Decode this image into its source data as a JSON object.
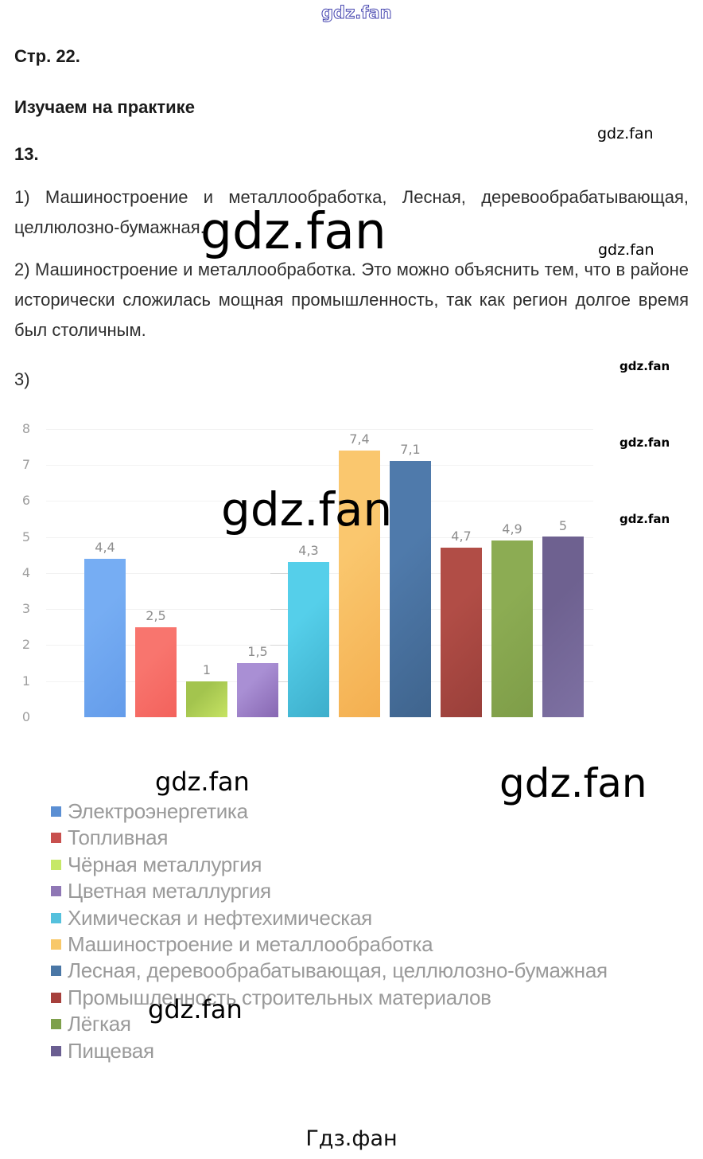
{
  "page": {
    "header": "Стр. 22.",
    "subheader": "Изучаем на практике",
    "task_number": "13.",
    "answers": {
      "p1_lines": [
        "1) Машиностроение и металлообработка, Лесная, деревообрабатывающая,",
        "целлюлозно-бумажная."
      ],
      "p2_lines": [
        "2) Машиностроение и металлообработка. Это можно объяснить тем, что в районе",
        "исторически сложилась мощная промышленность, так как регион долгое время",
        "был столичным."
      ],
      "p3_label": "3)"
    },
    "footer": "Гдз.фан"
  },
  "watermarks": [
    "gdz.fan",
    "gdz.fan",
    "gdz.fan",
    "gdz.fan",
    "gdz.fan",
    "gdz.fan",
    "gdz.fan",
    "gdz.fan",
    "gdz.fan",
    "gdz.fan",
    "gdz.fan"
  ],
  "chart_data": {
    "type": "bar",
    "title": "",
    "xlabel": "",
    "ylabel": "",
    "ylim": [
      0,
      8
    ],
    "yticks": [
      "0",
      "1",
      "2",
      "3",
      "4",
      "5",
      "6",
      "7",
      "8"
    ],
    "grid": "faint-horizontal",
    "legend_position": "bottom-left",
    "categories": [
      "Электроэнергетика",
      "Топливная",
      "Чёрная металлургия",
      "Цветная металлургия",
      "Химическая и нефтехимическая",
      "Машиностроение и металлообработка",
      "Лесная, деревообрабатывающая, целлюлозно-бумажная",
      "Промышленность строительных материалов",
      "Лёгкая",
      "Пищевая"
    ],
    "values": [
      4.4,
      2.5,
      1,
      1.5,
      4.3,
      7.4,
      7.1,
      4.7,
      4.9,
      5
    ],
    "value_labels": [
      "4,4",
      "2,5",
      "1",
      "1,5",
      "4,3",
      "7,4",
      "7,1",
      "4,7",
      "4,9",
      "5"
    ],
    "bar_colors": [
      [
        "#76ADF3",
        "#649CEA"
      ],
      [
        "#F8756E",
        "#F3625C"
      ],
      [
        "#A3C44E",
        "#C6E363"
      ],
      [
        "#A98FD4",
        "#8767B2"
      ],
      [
        "#55CFEA",
        "#3DAECB"
      ],
      [
        "#FAC76E",
        "#F4AF50"
      ],
      [
        "#4F7AAB",
        "#3F648D"
      ],
      [
        "#B14D46",
        "#993F3A"
      ],
      [
        "#8CAC53",
        "#7E9D48"
      ],
      [
        "#6E6190",
        "#7E71A3"
      ]
    ],
    "legend_colors": [
      "#5B8FD3",
      "#C8504E",
      "#C6E867",
      "#8F77B5",
      "#55C1DD",
      "#F8C869",
      "#4A77A6",
      "#A6403C",
      "#7EA04C",
      "#6A5E91"
    ]
  }
}
